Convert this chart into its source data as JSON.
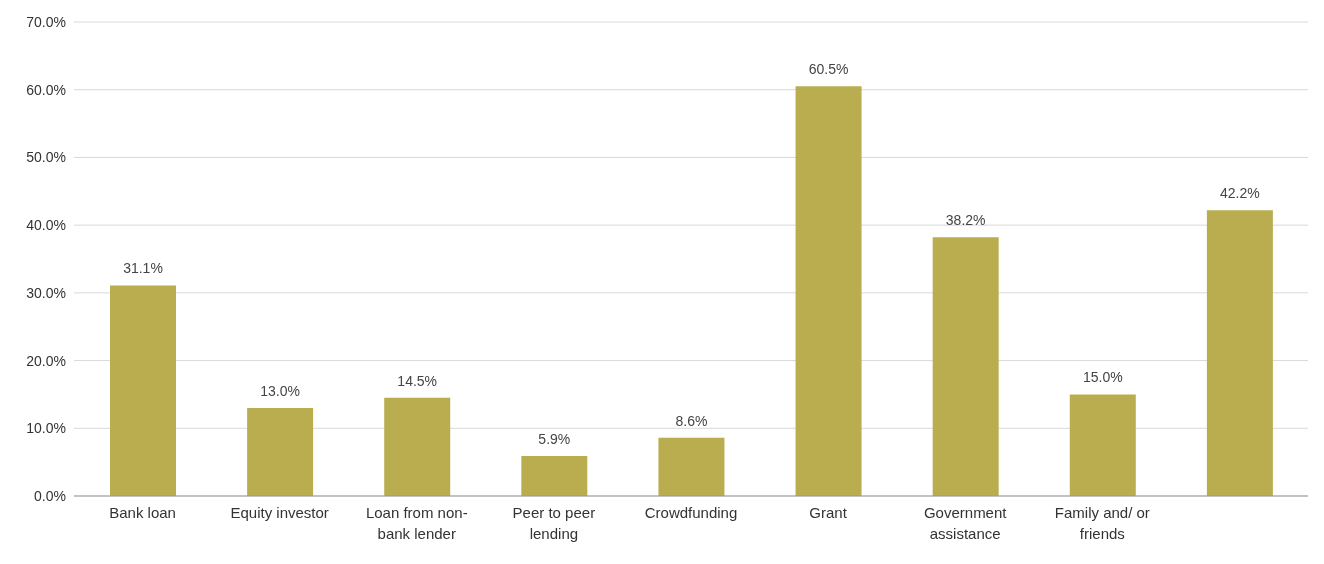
{
  "chart_data": {
    "type": "bar",
    "categories": [
      "Bank loan",
      "Equity investor",
      "Loan from non-bank lender",
      "Peer to peer lending",
      "Crowdfunding",
      "Grant",
      "Government assistance",
      "Family and/ or friends",
      null
    ],
    "values": [
      31.1,
      13.0,
      14.5,
      5.9,
      8.6,
      60.5,
      38.2,
      15.0,
      42.2
    ],
    "value_labels": [
      "31.1%",
      "13.0%",
      "14.5%",
      "5.9%",
      "8.6%",
      "60.5%",
      "38.2%",
      "15.0%",
      "42.2%"
    ],
    "color": "#b9ad50",
    "ylim": [
      0,
      70
    ],
    "yticks": [
      {
        "value": 0,
        "label": "0.0%"
      },
      {
        "value": 10,
        "label": "10.0%"
      },
      {
        "value": 20,
        "label": "20.0%"
      },
      {
        "value": 30,
        "label": "30.0%"
      },
      {
        "value": 40,
        "label": "40.0%"
      },
      {
        "value": 50,
        "label": "50.0%"
      },
      {
        "value": 60,
        "label": "60.0%"
      },
      {
        "value": 70,
        "label": "70.0%"
      }
    ],
    "grid": "y",
    "legend": false
  }
}
